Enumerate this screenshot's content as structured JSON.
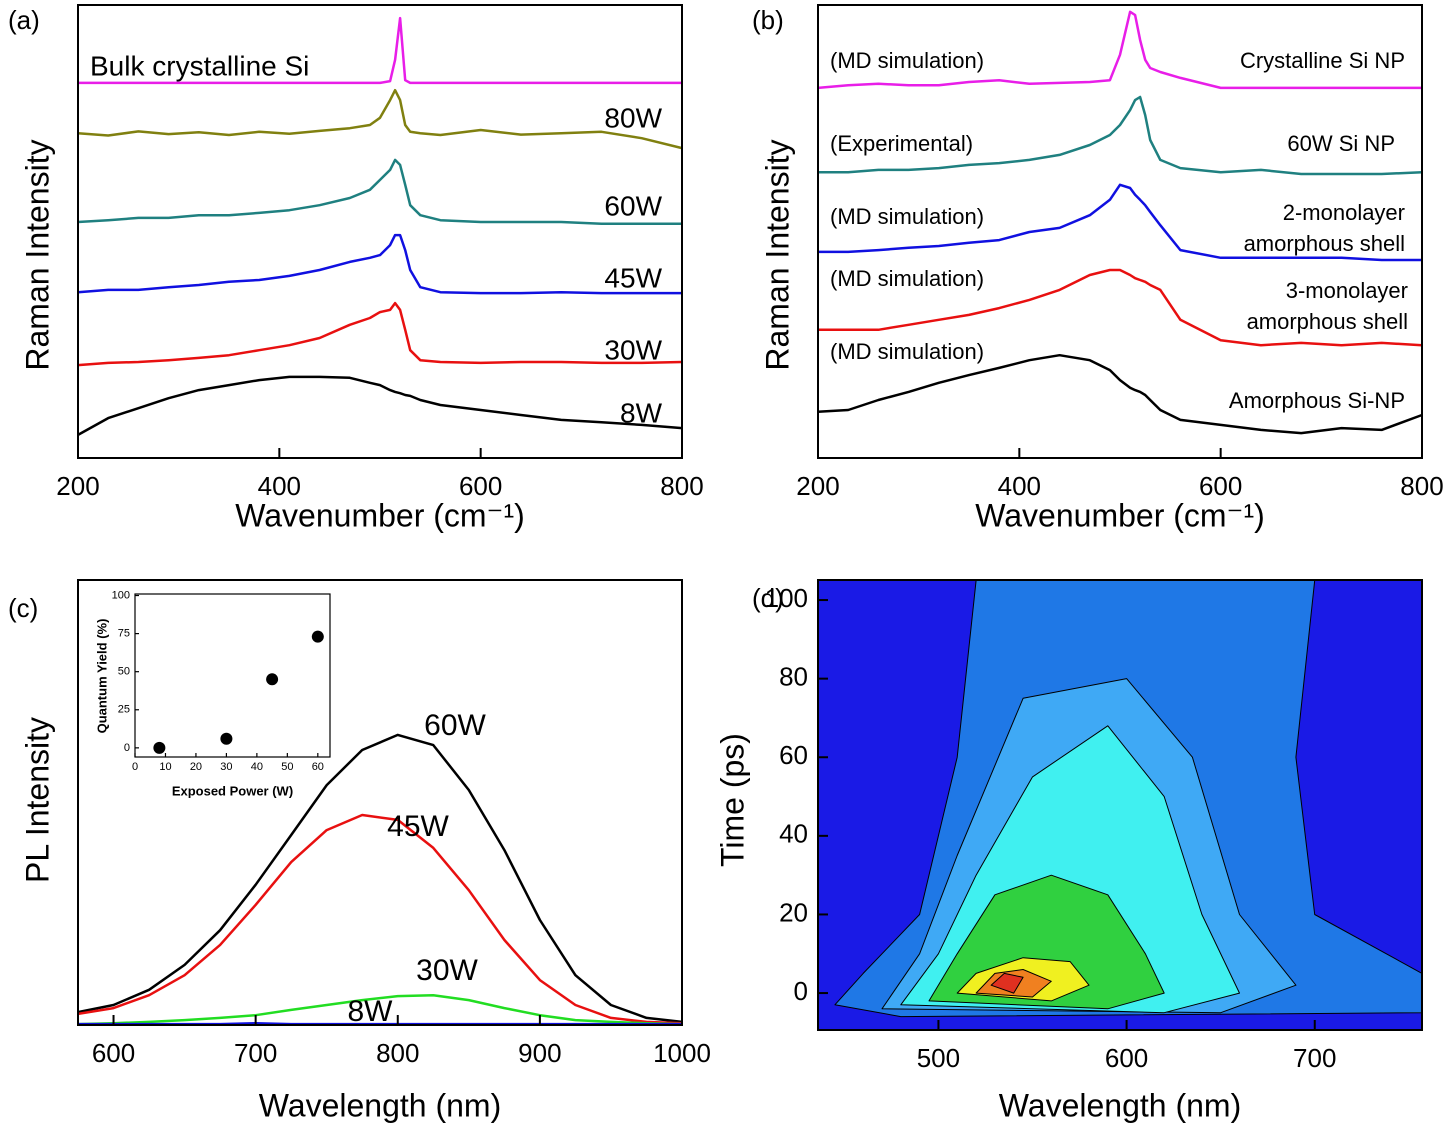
{
  "chart_data": [
    {
      "type": "line",
      "panel": "(a)",
      "x_label": "Wavenumber (cm⁻¹)",
      "y_label": "Raman Intensity",
      "xlim": [
        200,
        800
      ],
      "ylim": [
        0,
        100
      ],
      "xticks": [
        200,
        400,
        600,
        800
      ],
      "x": [
        200,
        230,
        260,
        290,
        320,
        350,
        380,
        410,
        440,
        470,
        490,
        500,
        510,
        515,
        520,
        525,
        530,
        540,
        560,
        600,
        640,
        680,
        720,
        760,
        800
      ],
      "series": [
        {
          "name_lines": [
            "Bulk crystalline Si"
          ],
          "color": "#e81ee8",
          "values": [
            82.8,
            82.8,
            82.8,
            82.8,
            82.8,
            82.8,
            82.8,
            82.8,
            82.8,
            82.8,
            82.8,
            82.8,
            83.2,
            87.9,
            97.1,
            83.4,
            82.8,
            82.8,
            82.8,
            82.8,
            82.8,
            82.8,
            82.8,
            82.8,
            82.8
          ]
        },
        {
          "name_lines": [
            "80W"
          ],
          "color": "#808010",
          "values": [
            71.7,
            71.2,
            72.1,
            71.5,
            71.9,
            71.3,
            72.0,
            71.6,
            72.2,
            72.8,
            73.5,
            75.1,
            79.0,
            81.2,
            79.0,
            73.5,
            72.0,
            71.7,
            71.3,
            72.4,
            71.4,
            71.7,
            72.0,
            70.6,
            68.4
          ]
        },
        {
          "name_lines": [
            "60W"
          ],
          "color": "#1f8080",
          "values": [
            52.1,
            52.5,
            53.0,
            53.0,
            53.6,
            53.6,
            54.1,
            54.7,
            55.8,
            57.4,
            59.2,
            61.4,
            63.6,
            65.8,
            64.7,
            60.3,
            55.8,
            53.6,
            52.5,
            52.1,
            52.1,
            52.1,
            51.7,
            51.7,
            51.7
          ]
        },
        {
          "name_lines": [
            "45W"
          ],
          "color": "#1010e0",
          "values": [
            36.6,
            37.1,
            37.1,
            37.7,
            38.2,
            38.9,
            39.3,
            40.2,
            41.5,
            43.3,
            44.2,
            44.8,
            47.0,
            49.2,
            49.2,
            45.9,
            41.5,
            37.7,
            36.6,
            36.4,
            36.4,
            36.6,
            36.4,
            36.4,
            36.4
          ]
        },
        {
          "name_lines": [
            "30W"
          ],
          "color": "#e81010",
          "values": [
            20.5,
            21.0,
            21.2,
            21.6,
            22.1,
            22.7,
            23.8,
            24.9,
            26.5,
            29.4,
            30.9,
            32.2,
            32.7,
            34.2,
            32.7,
            28.3,
            23.8,
            21.6,
            21.2,
            21.0,
            21.2,
            21.2,
            21.0,
            21.0,
            21.2
          ]
        },
        {
          "name_lines": [
            "8W"
          ],
          "color": "#000000",
          "values": [
            5.1,
            8.8,
            11.0,
            13.2,
            15.0,
            16.1,
            17.2,
            17.9,
            17.9,
            17.7,
            16.6,
            16.1,
            15.0,
            14.6,
            14.3,
            13.9,
            13.7,
            12.8,
            11.7,
            10.6,
            9.5,
            8.4,
            7.9,
            7.3,
            6.6
          ]
        }
      ]
    },
    {
      "type": "line",
      "panel": "(b)",
      "x_label": "Wavenumber (cm⁻¹)",
      "y_label": "Raman Intensity",
      "xlim": [
        200,
        800
      ],
      "ylim": [
        0,
        100
      ],
      "xticks": [
        200,
        400,
        600,
        800
      ],
      "x": [
        200,
        230,
        260,
        290,
        320,
        350,
        380,
        410,
        440,
        470,
        490,
        500,
        510,
        515,
        520,
        525,
        530,
        540,
        560,
        600,
        640,
        680,
        720,
        760,
        800
      ],
      "series": [
        {
          "method": "(MD simulation)",
          "name_lines": [
            "Crystalline Si NP"
          ],
          "color": "#e81ee8",
          "values": [
            81.7,
            82.3,
            82.6,
            82.3,
            82.3,
            83.0,
            83.4,
            82.6,
            82.8,
            83.0,
            83.4,
            89.0,
            98.5,
            97.8,
            92.3,
            87.9,
            86.1,
            85.2,
            83.9,
            81.7,
            81.7,
            81.7,
            81.7,
            81.7,
            81.7
          ]
        },
        {
          "method": "(Experimental)",
          "name_lines": [
            "60W Si NP"
          ],
          "color": "#1f8080",
          "values": [
            63.1,
            63.1,
            63.6,
            63.6,
            64.0,
            64.7,
            65.1,
            65.8,
            66.9,
            69.1,
            71.3,
            73.5,
            76.8,
            79.0,
            79.7,
            75.7,
            70.2,
            65.8,
            64.0,
            63.1,
            63.6,
            62.7,
            62.7,
            62.7,
            63.1
          ]
        },
        {
          "method": "(MD simulation)",
          "name_lines": [
            "2-monolayer",
            "amorphous shell"
          ],
          "color": "#1010e0",
          "values": [
            45.5,
            45.5,
            45.9,
            46.4,
            46.8,
            47.5,
            48.1,
            49.9,
            50.8,
            53.6,
            57.0,
            60.3,
            59.6,
            58.1,
            57.0,
            55.8,
            54.3,
            51.4,
            45.9,
            44.2,
            44.2,
            44.2,
            44.2,
            43.7,
            43.7
          ]
        },
        {
          "method": "(MD simulation)",
          "name_lines": [
            "3-monolayer",
            "amorphous shell"
          ],
          "color": "#e81010",
          "values": [
            28.3,
            28.3,
            28.3,
            29.4,
            30.5,
            31.6,
            33.1,
            34.9,
            37.1,
            40.4,
            41.5,
            41.5,
            40.4,
            39.7,
            39.3,
            38.9,
            38.2,
            37.1,
            30.5,
            26.0,
            24.9,
            25.4,
            24.9,
            25.4,
            24.9
          ]
        },
        {
          "method": "(MD simulation)",
          "name_lines": [
            "Amorphous Si-NP"
          ],
          "color": "#000000",
          "values": [
            10.2,
            10.6,
            12.8,
            14.6,
            16.6,
            18.3,
            19.9,
            21.6,
            22.7,
            21.6,
            19.4,
            17.2,
            15.5,
            15.0,
            14.6,
            13.9,
            12.8,
            10.6,
            8.4,
            7.3,
            6.2,
            5.5,
            6.6,
            6.2,
            9.5
          ]
        }
      ]
    },
    {
      "type": "line",
      "panel": "(c)",
      "x_label": "Wavelength (nm)",
      "y_label": "PL Intensity",
      "xlim": [
        575,
        1000
      ],
      "ylim": [
        0,
        100
      ],
      "xticks": [
        600,
        700,
        800,
        900,
        1000
      ],
      "x": [
        575,
        600,
        625,
        650,
        675,
        700,
        725,
        750,
        775,
        800,
        825,
        850,
        875,
        900,
        925,
        950,
        975,
        1000
      ],
      "series": [
        {
          "name_lines": [
            "60W"
          ],
          "color": "#000000",
          "values": [
            2.9,
            4.5,
            7.9,
            13.5,
            21.3,
            31.5,
            42.7,
            53.9,
            61.8,
            65.2,
            62.9,
            52.8,
            39.3,
            23.6,
            11.2,
            4.5,
            1.6,
            0.7
          ]
        },
        {
          "name_lines": [
            "45W"
          ],
          "color": "#e81010",
          "values": [
            2.5,
            3.8,
            6.7,
            11.2,
            18.0,
            27.0,
            36.6,
            43.8,
            47.2,
            46.1,
            39.8,
            30.3,
            19.1,
            10.1,
            4.5,
            1.6,
            0.7,
            0.4
          ]
        },
        {
          "name_lines": [
            "30W"
          ],
          "color": "#22dd22",
          "values": [
            0.2,
            0.4,
            0.7,
            1.1,
            1.6,
            2.2,
            3.4,
            4.5,
            5.6,
            6.5,
            6.7,
            5.6,
            3.8,
            2.2,
            1.1,
            0.7,
            0.4,
            0.2
          ]
        },
        {
          "name_lines": [
            "8W"
          ],
          "color": "#1010e0",
          "values": [
            0.2,
            0.2,
            0.2,
            0.2,
            0.2,
            0.4,
            0.2,
            0.2,
            0.2,
            0.2,
            0.2,
            0.2,
            0.2,
            0.2,
            0.2,
            0.2,
            0.2,
            0.2
          ]
        }
      ],
      "inset": {
        "type": "scatter",
        "x_label": "Exposed Power (W)",
        "y_label": "Quantum Yield (%)",
        "xlim": [
          0,
          64
        ],
        "ylim": [
          -6,
          101
        ],
        "xticks": [
          0,
          10,
          20,
          30,
          40,
          50,
          60
        ],
        "yticks": [
          0,
          25,
          50,
          75,
          100
        ],
        "x": [
          8,
          30,
          45,
          60
        ],
        "values": [
          0,
          6,
          45,
          73
        ],
        "color": "#000000"
      }
    },
    {
      "type": "contour",
      "panel": "(d)",
      "x_label": "Wavelength (nm)",
      "y_label": "Time (ps)",
      "xlim": [
        436,
        757
      ],
      "ylim": [
        -9.4,
        105.1
      ],
      "xticks": [
        500,
        600,
        700
      ],
      "yticks": [
        0,
        20,
        40,
        60,
        80,
        100
      ],
      "background": "#1a1ae6",
      "contours": [
        {
          "color": "#1f78e6",
          "x": [
            445,
            460,
            490,
            510,
            520,
            700,
            690,
            700,
            757,
            757,
            480
          ],
          "y": [
            -3,
            5,
            20,
            60,
            105,
            105,
            60,
            20,
            5,
            -5,
            -6
          ]
        },
        {
          "color": "#3fa9f5",
          "x": [
            470,
            490,
            510,
            545,
            600,
            635,
            660,
            690,
            650
          ],
          "y": [
            -4,
            10,
            35,
            75,
            80,
            60,
            20,
            2,
            -5
          ]
        },
        {
          "color": "#40f0f0",
          "x": [
            480,
            500,
            520,
            550,
            590,
            620,
            640,
            660,
            620
          ],
          "y": [
            -3,
            10,
            30,
            55,
            68,
            50,
            20,
            0,
            -5
          ]
        },
        {
          "color": "#30d040",
          "x": [
            495,
            510,
            530,
            560,
            590,
            610,
            620,
            590
          ],
          "y": [
            -2,
            10,
            25,
            30,
            25,
            10,
            0,
            -4
          ]
        },
        {
          "color": "#f0f020",
          "x": [
            510,
            520,
            545,
            570,
            580,
            560
          ],
          "y": [
            0,
            5,
            9,
            8,
            2,
            -2
          ]
        },
        {
          "color": "#f08020",
          "x": [
            520,
            530,
            545,
            560,
            550
          ],
          "y": [
            0,
            5,
            6,
            3,
            -1
          ]
        },
        {
          "color": "#e03020",
          "x": [
            528,
            535,
            545,
            540
          ],
          "y": [
            2,
            5,
            4,
            0
          ]
        }
      ]
    }
  ]
}
